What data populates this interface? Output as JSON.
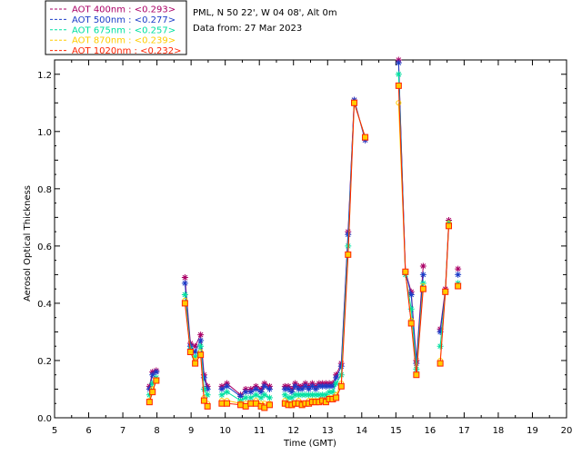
{
  "chart_data": {
    "type": "scatter",
    "title_lines": [
      "PML, N 50 22', W 04 08', Alt 0m",
      "Data from: 27 Mar 2023"
    ],
    "xlabel": "Time (GMT)",
    "ylabel": "Aerosol Optical Thickness",
    "xlim": [
      5,
      20
    ],
    "ylim": [
      0,
      1.25
    ],
    "xticks": [
      5,
      6,
      7,
      8,
      9,
      10,
      11,
      12,
      13,
      14,
      15,
      16,
      17,
      18,
      19,
      20
    ],
    "yticks": [
      0.0,
      0.2,
      0.4,
      0.6,
      0.8,
      1.0,
      1.2
    ],
    "ytick_labels": [
      "0.0",
      "0.2",
      "0.4",
      "0.6",
      "0.8",
      "1.0",
      "1.2"
    ],
    "legend_position": "top-left",
    "legend": [
      {
        "label": "AOT  400nm : <0.293>",
        "color": "#aa0066"
      },
      {
        "label": "AOT  500nm : <0.277>",
        "color": "#1a3cc8"
      },
      {
        "label": "AOT  675nm : <0.257>",
        "color": "#00e0a0"
      },
      {
        "label": "AOT  870nm : <0.239>",
        "color": "#ffcc00"
      },
      {
        "label": "AOT 1020nm : <0.232>",
        "color": "#ff2200"
      }
    ],
    "series": [
      {
        "name": "AOT  400nm",
        "color": "#aa0066",
        "marker": "star",
        "points": [
          [
            7.78,
            0.11
          ],
          [
            7.87,
            0.16
          ],
          [
            7.98,
            0.165
          ],
          [
            8.82,
            0.49
          ],
          [
            8.98,
            0.26
          ],
          [
            9.12,
            0.25
          ],
          [
            9.28,
            0.29
          ],
          [
            9.38,
            0.15
          ],
          [
            9.48,
            0.11
          ],
          [
            9.9,
            0.11
          ],
          [
            10.05,
            0.12
          ],
          [
            10.45,
            0.08
          ],
          [
            10.6,
            0.1
          ],
          [
            10.75,
            0.1
          ],
          [
            10.9,
            0.11
          ],
          [
            11.05,
            0.1
          ],
          [
            11.15,
            0.12
          ],
          [
            11.3,
            0.11
          ],
          [
            11.75,
            0.11
          ],
          [
            11.85,
            0.11
          ],
          [
            11.95,
            0.1
          ],
          [
            12.05,
            0.12
          ],
          [
            12.15,
            0.11
          ],
          [
            12.25,
            0.11
          ],
          [
            12.35,
            0.12
          ],
          [
            12.45,
            0.11
          ],
          [
            12.55,
            0.12
          ],
          [
            12.65,
            0.11
          ],
          [
            12.75,
            0.12
          ],
          [
            12.85,
            0.12
          ],
          [
            12.95,
            0.12
          ],
          [
            13.05,
            0.12
          ],
          [
            13.15,
            0.12
          ],
          [
            13.25,
            0.15
          ],
          [
            13.4,
            0.19
          ],
          [
            13.6,
            0.65
          ],
          [
            13.78,
            1.11
          ],
          [
            14.1,
            0.97
          ],
          [
            15.08,
            1.25
          ],
          [
            15.28,
            0.51
          ],
          [
            15.45,
            0.44
          ],
          [
            15.6,
            0.2
          ],
          [
            15.8,
            0.53
          ],
          [
            16.3,
            0.31
          ],
          [
            16.45,
            0.45
          ],
          [
            16.55,
            0.69
          ],
          [
            16.82,
            0.52
          ]
        ]
      },
      {
        "name": "AOT  500nm",
        "color": "#1a3cc8",
        "marker": "star",
        "points": [
          [
            7.78,
            0.1
          ],
          [
            7.87,
            0.15
          ],
          [
            7.98,
            0.16
          ],
          [
            8.82,
            0.47
          ],
          [
            8.98,
            0.25
          ],
          [
            9.12,
            0.23
          ],
          [
            9.28,
            0.27
          ],
          [
            9.38,
            0.14
          ],
          [
            9.48,
            0.1
          ],
          [
            9.9,
            0.1
          ],
          [
            10.05,
            0.11
          ],
          [
            10.45,
            0.075
          ],
          [
            10.6,
            0.09
          ],
          [
            10.75,
            0.09
          ],
          [
            10.9,
            0.1
          ],
          [
            11.05,
            0.09
          ],
          [
            11.15,
            0.11
          ],
          [
            11.3,
            0.1
          ],
          [
            11.75,
            0.1
          ],
          [
            11.85,
            0.1
          ],
          [
            11.95,
            0.09
          ],
          [
            12.05,
            0.11
          ],
          [
            12.15,
            0.1
          ],
          [
            12.25,
            0.1
          ],
          [
            12.35,
            0.11
          ],
          [
            12.45,
            0.1
          ],
          [
            12.55,
            0.11
          ],
          [
            12.65,
            0.1
          ],
          [
            12.75,
            0.11
          ],
          [
            12.85,
            0.11
          ],
          [
            12.95,
            0.11
          ],
          [
            13.05,
            0.11
          ],
          [
            13.15,
            0.11
          ],
          [
            13.25,
            0.14
          ],
          [
            13.4,
            0.18
          ],
          [
            13.6,
            0.64
          ],
          [
            13.78,
            1.11
          ],
          [
            14.1,
            0.97
          ],
          [
            15.08,
            1.24
          ],
          [
            15.28,
            0.51
          ],
          [
            15.45,
            0.43
          ],
          [
            15.6,
            0.19
          ],
          [
            15.8,
            0.5
          ],
          [
            16.3,
            0.3
          ],
          [
            16.45,
            0.44
          ],
          [
            16.55,
            0.68
          ],
          [
            16.82,
            0.5
          ]
        ]
      },
      {
        "name": "AOT  675nm",
        "color": "#00e0a0",
        "marker": "star",
        "points": [
          [
            7.78,
            0.08
          ],
          [
            7.87,
            0.12
          ],
          [
            7.98,
            0.14
          ],
          [
            8.82,
            0.43
          ],
          [
            8.98,
            0.24
          ],
          [
            9.12,
            0.21
          ],
          [
            9.28,
            0.25
          ],
          [
            9.38,
            0.1
          ],
          [
            9.48,
            0.08
          ],
          [
            9.9,
            0.08
          ],
          [
            10.05,
            0.09
          ],
          [
            10.45,
            0.06
          ],
          [
            10.6,
            0.07
          ],
          [
            10.75,
            0.07
          ],
          [
            10.9,
            0.08
          ],
          [
            11.05,
            0.07
          ],
          [
            11.15,
            0.08
          ],
          [
            11.3,
            0.07
          ],
          [
            11.75,
            0.08
          ],
          [
            11.85,
            0.07
          ],
          [
            11.95,
            0.07
          ],
          [
            12.05,
            0.08
          ],
          [
            12.15,
            0.08
          ],
          [
            12.25,
            0.08
          ],
          [
            12.35,
            0.08
          ],
          [
            12.45,
            0.08
          ],
          [
            12.55,
            0.08
          ],
          [
            12.65,
            0.08
          ],
          [
            12.75,
            0.08
          ],
          [
            12.85,
            0.08
          ],
          [
            12.95,
            0.08
          ],
          [
            13.05,
            0.09
          ],
          [
            13.15,
            0.09
          ],
          [
            13.25,
            0.12
          ],
          [
            13.4,
            0.15
          ],
          [
            13.6,
            0.6
          ],
          [
            13.78,
            1.1
          ],
          [
            14.1,
            0.98
          ],
          [
            15.08,
            1.2
          ],
          [
            15.28,
            0.5
          ],
          [
            15.45,
            0.38
          ],
          [
            15.6,
            0.17
          ],
          [
            15.8,
            0.47
          ],
          [
            16.3,
            0.25
          ],
          [
            16.45,
            0.44
          ],
          [
            16.55,
            0.68
          ],
          [
            16.82,
            0.47
          ]
        ]
      },
      {
        "name": "AOT  870nm",
        "color": "#ffcc00",
        "marker": "circle",
        "points": [
          [
            7.78,
            0.06
          ],
          [
            7.87,
            0.1
          ],
          [
            7.98,
            0.13
          ],
          [
            8.82,
            0.41
          ],
          [
            8.98,
            0.23
          ],
          [
            9.12,
            0.2
          ],
          [
            9.28,
            0.23
          ],
          [
            9.38,
            0.07
          ],
          [
            9.48,
            0.05
          ],
          [
            9.9,
            0.06
          ],
          [
            10.05,
            0.06
          ],
          [
            10.45,
            0.05
          ],
          [
            10.6,
            0.05
          ],
          [
            10.75,
            0.05
          ],
          [
            10.9,
            0.06
          ],
          [
            11.05,
            0.05
          ],
          [
            11.15,
            0.05
          ],
          [
            11.3,
            0.05
          ],
          [
            11.75,
            0.06
          ],
          [
            11.85,
            0.05
          ],
          [
            11.95,
            0.05
          ],
          [
            12.05,
            0.05
          ],
          [
            12.15,
            0.06
          ],
          [
            12.25,
            0.05
          ],
          [
            12.35,
            0.05
          ],
          [
            12.45,
            0.06
          ],
          [
            12.55,
            0.06
          ],
          [
            12.65,
            0.06
          ],
          [
            12.75,
            0.06
          ],
          [
            12.85,
            0.06
          ],
          [
            12.95,
            0.06
          ],
          [
            13.05,
            0.07
          ],
          [
            13.15,
            0.07
          ],
          [
            13.25,
            0.08
          ],
          [
            13.4,
            0.12
          ],
          [
            13.6,
            0.57
          ],
          [
            13.78,
            1.1
          ],
          [
            14.1,
            0.98
          ],
          [
            15.08,
            1.1
          ],
          [
            15.28,
            0.51
          ],
          [
            15.45,
            0.34
          ],
          [
            15.6,
            0.15
          ],
          [
            15.8,
            0.46
          ],
          [
            16.3,
            0.2
          ],
          [
            16.45,
            0.44
          ],
          [
            16.55,
            0.68
          ],
          [
            16.82,
            0.46
          ]
        ]
      },
      {
        "name": "AOT 1020nm",
        "color": "#ff2200",
        "marker": "square",
        "points": [
          [
            7.78,
            0.055
          ],
          [
            7.87,
            0.09
          ],
          [
            7.98,
            0.13
          ],
          [
            8.82,
            0.4
          ],
          [
            8.98,
            0.23
          ],
          [
            9.12,
            0.19
          ],
          [
            9.28,
            0.22
          ],
          [
            9.38,
            0.06
          ],
          [
            9.48,
            0.04
          ],
          [
            9.9,
            0.05
          ],
          [
            10.05,
            0.05
          ],
          [
            10.45,
            0.045
          ],
          [
            10.6,
            0.04
          ],
          [
            10.75,
            0.05
          ],
          [
            10.9,
            0.05
          ],
          [
            11.05,
            0.04
          ],
          [
            11.15,
            0.035
          ],
          [
            11.3,
            0.045
          ],
          [
            11.75,
            0.05
          ],
          [
            11.85,
            0.045
          ],
          [
            11.95,
            0.045
          ],
          [
            12.05,
            0.05
          ],
          [
            12.15,
            0.05
          ],
          [
            12.25,
            0.045
          ],
          [
            12.35,
            0.05
          ],
          [
            12.45,
            0.05
          ],
          [
            12.55,
            0.055
          ],
          [
            12.65,
            0.055
          ],
          [
            12.75,
            0.055
          ],
          [
            12.85,
            0.06
          ],
          [
            12.95,
            0.055
          ],
          [
            13.05,
            0.065
          ],
          [
            13.15,
            0.065
          ],
          [
            13.25,
            0.07
          ],
          [
            13.4,
            0.11
          ],
          [
            13.6,
            0.57
          ],
          [
            13.78,
            1.1
          ],
          [
            14.1,
            0.98
          ],
          [
            15.08,
            1.16
          ],
          [
            15.28,
            0.51
          ],
          [
            15.45,
            0.33
          ],
          [
            15.6,
            0.15
          ],
          [
            15.8,
            0.45
          ],
          [
            16.3,
            0.19
          ],
          [
            16.45,
            0.44
          ],
          [
            16.55,
            0.67
          ],
          [
            16.82,
            0.46
          ]
        ]
      }
    ],
    "breaks_after_x": [
      7.98,
      9.48,
      11.3,
      14.1,
      15.8,
      16.55
    ]
  }
}
